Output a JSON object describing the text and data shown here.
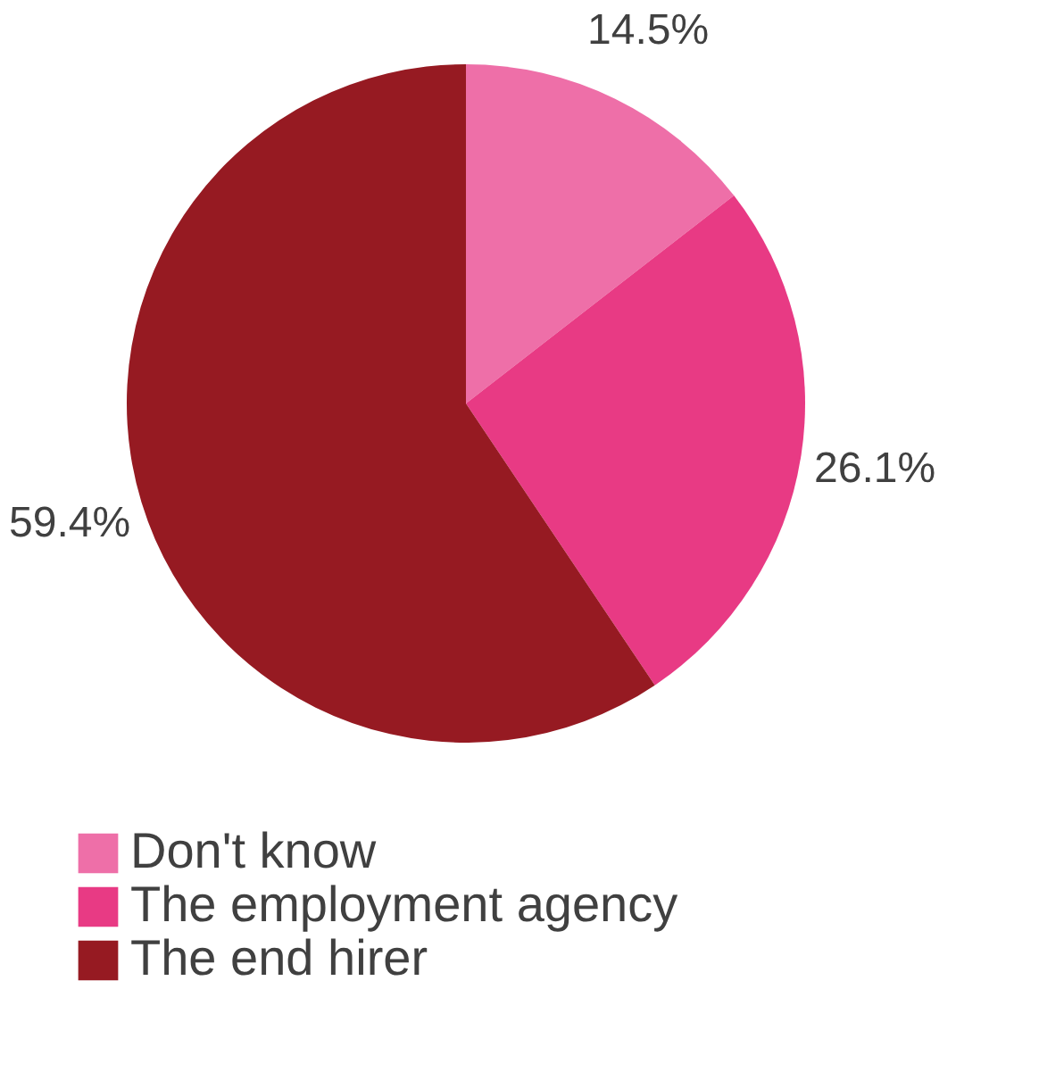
{
  "chart_data": {
    "type": "pie",
    "categories": [
      "Don't know",
      "The employment agency",
      "The end hirer"
    ],
    "values": [
      14.5,
      26.1,
      59.4
    ],
    "colors": [
      "#ee6fa8",
      "#e83a84",
      "#961a22"
    ],
    "value_labels": [
      "14.5%",
      "26.1%",
      "59.4%"
    ],
    "legend": "bottom"
  }
}
